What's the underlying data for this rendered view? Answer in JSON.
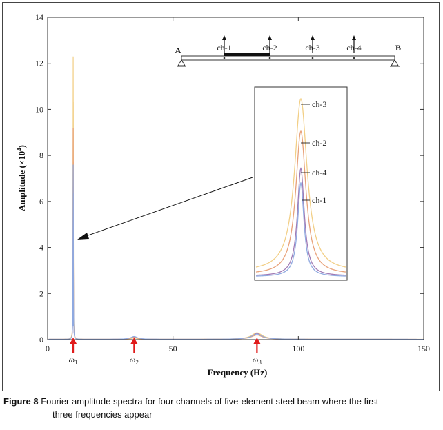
{
  "chart_data": {
    "type": "line",
    "xlabel": "Frequency (Hz)",
    "ylabel_main": "Amplitude (×10",
    "ylabel_sup": "4",
    "ylabel_end": ")",
    "xlim": [
      0,
      150
    ],
    "ylim": [
      0,
      14
    ],
    "x_ticks": [
      0,
      50,
      100,
      150
    ],
    "x_tick_labels": [
      "0",
      "50",
      "100",
      "150"
    ],
    "y_ticks": [
      0,
      2,
      4,
      6,
      8,
      10,
      12,
      14
    ],
    "y_tick_labels": [
      "0",
      "2",
      "4",
      "6",
      "8",
      "10",
      "12",
      "14"
    ],
    "grid": false,
    "frequency_markers": [
      {
        "base": "ω",
        "sub": "1",
        "x": 10.2
      },
      {
        "base": "ω",
        "sub": "2",
        "x": 34.5
      },
      {
        "base": "ω",
        "sub": "3",
        "x": 83.5
      }
    ],
    "series": [
      {
        "name": "ch-1",
        "color": "#8fa9e0",
        "peaks": [
          {
            "x": 10.2,
            "y": 7.6
          },
          {
            "x": 34.5,
            "y": 0.12
          },
          {
            "x": 83.5,
            "y": 0.22
          }
        ]
      },
      {
        "name": "ch-2",
        "color": "#e8a27a",
        "peaks": [
          {
            "x": 10.2,
            "y": 9.2
          },
          {
            "x": 34.5,
            "y": 0.08
          },
          {
            "x": 83.5,
            "y": 0.18
          }
        ]
      },
      {
        "name": "ch-3",
        "color": "#f2cf86",
        "peaks": [
          {
            "x": 10.2,
            "y": 12.3
          },
          {
            "x": 34.5,
            "y": 0.05
          },
          {
            "x": 83.5,
            "y": 0.28
          }
        ]
      },
      {
        "name": "ch-4",
        "color": "#a07bb5",
        "peaks": [
          {
            "x": 10.2,
            "y": 7.6
          },
          {
            "x": 34.5,
            "y": 0.1
          },
          {
            "x": 83.5,
            "y": 0.25
          }
        ]
      }
    ],
    "inset_labels": [
      "ch-3",
      "ch-2",
      "ch-4",
      "ch-1"
    ],
    "beam": {
      "left_support": "A",
      "right_support": "B",
      "channels": [
        "ch-1",
        "ch-2",
        "ch-3",
        "ch-4"
      ]
    }
  },
  "caption": {
    "label": "Figure 8",
    "line1": "Fourier amplitude spectra for four channels of five-element steel beam where the first",
    "line2": "three frequencies appear"
  }
}
